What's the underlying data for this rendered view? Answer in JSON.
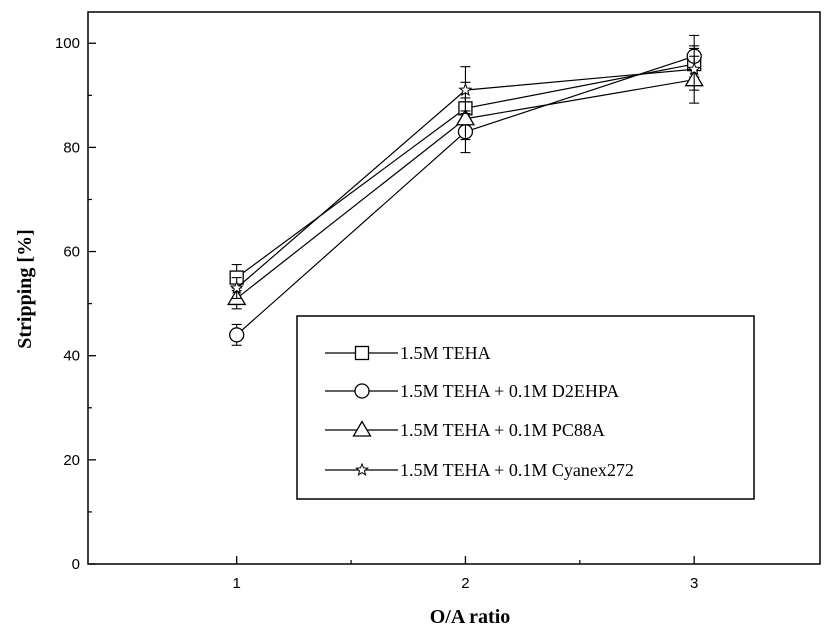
{
  "chart_data": {
    "type": "line",
    "title": "",
    "xlabel": "O/A ratio",
    "ylabel": "Stripping [%]",
    "x": [
      1,
      2,
      3
    ],
    "xlim": [
      0.35,
      3.55
    ],
    "ylim": [
      0,
      106
    ],
    "x_ticks": [
      "1",
      "2",
      "3"
    ],
    "y_ticks": [
      "0",
      "20",
      "40",
      "60",
      "80",
      "100"
    ],
    "grid": false,
    "legend_position": "lower-right",
    "series": [
      {
        "name": "1.5M TEHA",
        "marker": "square",
        "values": [
          55,
          87.5,
          96
        ],
        "errors": [
          2.5,
          5,
          3.5
        ]
      },
      {
        "name": "1.5M TEHA + 0.1M D2EHPA",
        "marker": "circle",
        "values": [
          44,
          83,
          97.5
        ],
        "errors": [
          2,
          4,
          4
        ]
      },
      {
        "name": "1.5M TEHA + 0.1M PC88A",
        "marker": "triangle",
        "values": [
          51,
          85.5,
          93
        ],
        "errors": [
          2,
          4,
          4.5
        ]
      },
      {
        "name": "1.5M TEHA + 0.1M Cyanex272",
        "marker": "star",
        "values": [
          53,
          91,
          95
        ],
        "errors": [
          2,
          4.5,
          4
        ]
      }
    ]
  }
}
